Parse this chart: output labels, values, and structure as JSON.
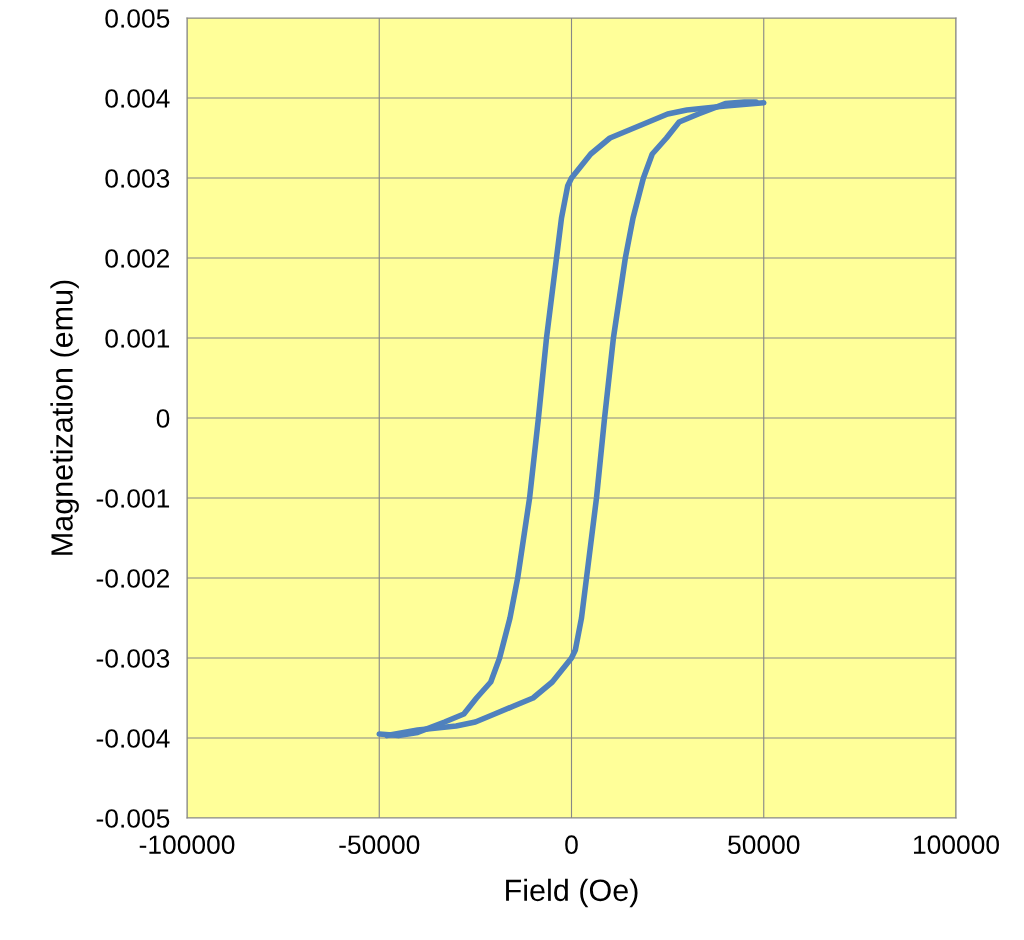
{
  "chart_data": {
    "type": "line",
    "xlabel": "Field (Oe)",
    "ylabel": "Magnetization (emu)",
    "series": [
      {
        "color": "#4f81bd",
        "x": [
          -50000,
          -45000,
          -40000,
          -33000,
          -28000,
          -24700,
          -21000,
          -18700,
          -16000,
          -14000,
          -10900,
          -8600,
          -6500,
          -3900,
          -2600,
          -1000,
          0,
          5000,
          10000,
          15000,
          20000,
          25000,
          30000,
          40000,
          50000
        ],
        "values": [
          -0.00395,
          -0.00397,
          -0.00393,
          -0.0038,
          -0.0037,
          -0.0035,
          -0.0033,
          -0.003,
          -0.0025,
          -0.002,
          -0.001,
          0,
          0.001,
          0.002,
          0.0025,
          0.0029,
          0.003,
          0.0033,
          0.0035,
          0.0036,
          0.0037,
          0.0038,
          0.00385,
          0.0039,
          0.00394
        ]
      },
      {
        "color": "#4f81bd",
        "x": [
          -48000,
          -40000,
          -30000,
          -25000,
          -20000,
          -15000,
          -10000,
          -5000,
          0,
          1000,
          2600,
          3900,
          6500,
          8600,
          10900,
          14000,
          16000,
          18700,
          21000,
          24700,
          28000,
          33000,
          40000,
          45000,
          48000
        ],
        "values": [
          -0.00397,
          -0.0039,
          -0.00385,
          -0.0038,
          -0.0037,
          -0.0036,
          -0.0035,
          -0.0033,
          -0.003,
          -0.0029,
          -0.0025,
          -0.002,
          -0.001,
          0,
          0.001,
          0.002,
          0.0025,
          0.003,
          0.0033,
          0.0035,
          0.0037,
          0.0038,
          0.00393,
          0.00395,
          0.00395
        ]
      }
    ],
    "xlim": [
      -100000,
      100000
    ],
    "xticks": [
      -100000,
      -50000,
      0,
      50000,
      100000
    ],
    "ylim": [
      -0.005,
      0.005
    ],
    "yticks": [
      -0.005,
      -0.004,
      -0.003,
      -0.002,
      -0.001,
      0,
      0.001,
      0.002,
      0.003,
      0.004,
      0.005
    ],
    "grid": true,
    "line_style": "solid"
  }
}
